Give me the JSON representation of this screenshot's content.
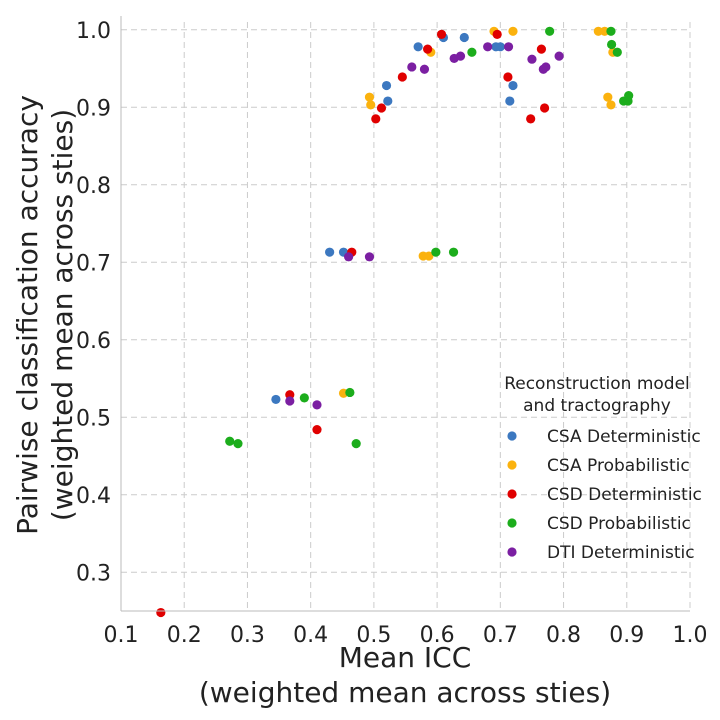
{
  "chart_data": {
    "type": "scatter",
    "xlabel_lines": [
      "Mean ICC",
      "(weighted mean across sties)"
    ],
    "ylabel_lines": [
      "Pairwise classification accuracy",
      "(weighted mean across sties)"
    ],
    "xlim": [
      0.1,
      1.0
    ],
    "ylim": [
      0.25,
      1.01
    ],
    "xticks": [
      "0.1",
      "0.2",
      "0.3",
      "0.4",
      "0.5",
      "0.6",
      "0.7",
      "0.8",
      "0.9",
      "1.0"
    ],
    "yticks": [
      "0.3",
      "0.4",
      "0.5",
      "0.6",
      "0.7",
      "0.8",
      "0.9",
      "1.0"
    ],
    "grid": true,
    "legend": {
      "title_lines": [
        "Reconstruction model",
        "and tractography"
      ],
      "placement": "right"
    },
    "series": [
      {
        "name": "CSA Deterministic",
        "color": "#3c78c0",
        "points": [
          [
            0.345,
            0.523
          ],
          [
            0.43,
            0.713
          ],
          [
            0.452,
            0.713
          ],
          [
            0.52,
            0.928
          ],
          [
            0.522,
            0.908
          ],
          [
            0.57,
            0.978
          ],
          [
            0.61,
            0.99
          ],
          [
            0.643,
            0.99
          ],
          [
            0.693,
            0.978
          ],
          [
            0.7,
            0.978
          ],
          [
            0.715,
            0.908
          ],
          [
            0.72,
            0.928
          ]
        ]
      },
      {
        "name": "CSA Probabilistic",
        "color": "#fbb20e",
        "points": [
          [
            0.452,
            0.531
          ],
          [
            0.493,
            0.913
          ],
          [
            0.495,
            0.903
          ],
          [
            0.59,
            0.971
          ],
          [
            0.578,
            0.708
          ],
          [
            0.587,
            0.708
          ],
          [
            0.69,
            0.998
          ],
          [
            0.72,
            0.998
          ],
          [
            0.855,
            0.998
          ],
          [
            0.865,
            0.998
          ],
          [
            0.87,
            0.913
          ],
          [
            0.875,
            0.903
          ],
          [
            0.878,
            0.971
          ]
        ]
      },
      {
        "name": "CSD Deterministic",
        "color": "#e00000",
        "points": [
          [
            0.163,
            0.248
          ],
          [
            0.367,
            0.529
          ],
          [
            0.41,
            0.484
          ],
          [
            0.465,
            0.713
          ],
          [
            0.503,
            0.885
          ],
          [
            0.512,
            0.899
          ],
          [
            0.545,
            0.939
          ],
          [
            0.585,
            0.975
          ],
          [
            0.607,
            0.994
          ],
          [
            0.695,
            0.994
          ],
          [
            0.712,
            0.939
          ],
          [
            0.748,
            0.885
          ],
          [
            0.765,
            0.975
          ],
          [
            0.77,
            0.899
          ]
        ]
      },
      {
        "name": "CSD Probabilistic",
        "color": "#1cad1c",
        "points": [
          [
            0.272,
            0.469
          ],
          [
            0.285,
            0.466
          ],
          [
            0.39,
            0.525
          ],
          [
            0.462,
            0.532
          ],
          [
            0.472,
            0.466
          ],
          [
            0.598,
            0.713
          ],
          [
            0.626,
            0.713
          ],
          [
            0.655,
            0.971
          ],
          [
            0.778,
            0.998
          ],
          [
            0.875,
            0.998
          ],
          [
            0.876,
            0.981
          ],
          [
            0.885,
            0.971
          ],
          [
            0.895,
            0.908
          ],
          [
            0.902,
            0.908
          ],
          [
            0.903,
            0.915
          ]
        ]
      },
      {
        "name": "DTI Deterministic",
        "color": "#7b1fa2",
        "points": [
          [
            0.367,
            0.521
          ],
          [
            0.41,
            0.516
          ],
          [
            0.46,
            0.707
          ],
          [
            0.493,
            0.707
          ],
          [
            0.56,
            0.952
          ],
          [
            0.58,
            0.949
          ],
          [
            0.627,
            0.963
          ],
          [
            0.637,
            0.966
          ],
          [
            0.68,
            0.978
          ],
          [
            0.713,
            0.978
          ],
          [
            0.75,
            0.962
          ],
          [
            0.768,
            0.949
          ],
          [
            0.772,
            0.952
          ],
          [
            0.793,
            0.966
          ]
        ]
      }
    ]
  }
}
